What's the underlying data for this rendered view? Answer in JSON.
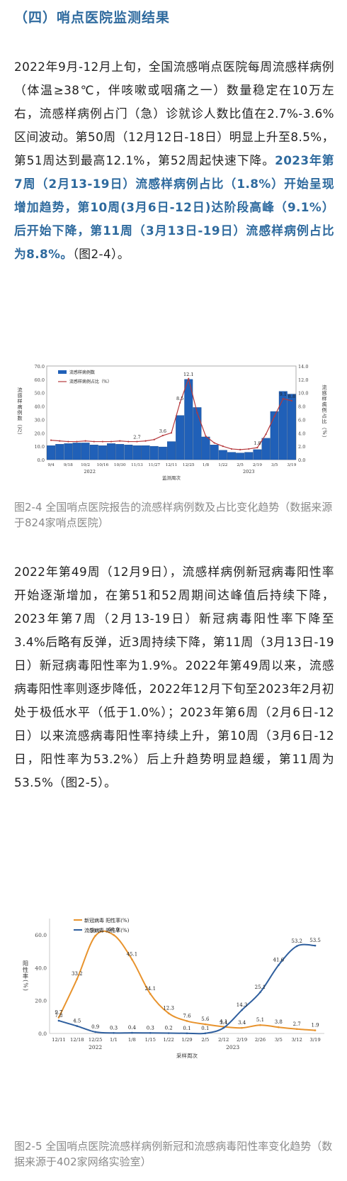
{
  "heading": "（四）哨点医院监测结果",
  "para1": {
    "plain": "2022年9月-12月上旬，全国流感哨点医院每周流感样病例（体温≥38℃，伴咳嗽或咽痛之一）数量稳定在10万左右，流感样病例占门（急）诊就诊人数比值在2.7%-3.6%区间波动。第50周（12月12日-18日）明显上升至8.5%，第51周达到最高12.1%，第52周起快速下降。",
    "bold": "2023年第7周（2月13-19日）流感样病例占比（1.8%）开始呈现增加趋势，第10周(3月6日-12日)达阶段高峰（9.1%）后开始下降，第11周（3月13日-19日）流感样病例占比为8.8%。",
    "tail": "（图2-4）。"
  },
  "chart1": {
    "legend_bar": "流感样病例数",
    "legend_line": "流感样病例占比（%）",
    "ylabel_left": "流感样病例数（万）",
    "ylabel_right": "流感样病例占比（%）",
    "xlabel": "监测周次",
    "year_left": "2022",
    "year_right": "2023",
    "caption": "图2-4 全国哨点医院报告的流感样病例数及占比变化趋势（数据来源于824家哨点医院）"
  },
  "para2": "2022年第49周（12月9日），流感样病例新冠病毒阳性率开始逐渐增加，在第51和52周期间达峰值后持续下降，2023年第7周（2月13-19日）新冠病毒阳性率下降至3.4%后略有反弹，近3周持续下降，第11周（3月13日-19日）新冠病毒阳性率为1.9%。2022年第49周以来，流感病毒阳性率则逐步降低，2022年12月下旬至2023年2月初处于极低水平（低于1.0%）；2023年第6周（2月6日-12日）以来流感病毒阳性率持续上升，第10周（3月6日-12日，阳性率为53.2%）后上升趋势明显趋缓，第11周为53.5%（图2-5）。",
  "chart2": {
    "legend_covid": "新冠病毒 阳性率(%)",
    "legend_flu": "流感病毒 阳性率(%)",
    "ylabel": "阳性率(%)",
    "xlabel": "采样周次",
    "year_left": "2022",
    "year_right": "2023",
    "caption": "图2-5 全国哨点医院流感样病例新冠和流感病毒阳性率变化趋势（数据来源于402家网络实验室）"
  },
  "colors": {
    "heading": "#2e6a9e",
    "bar": "#2060b8",
    "line1": "#b5383c",
    "covid": "#e8932d",
    "flu": "#2f5f9e"
  },
  "chart_data": [
    {
      "type": "bar",
      "categories": [
        "9/4",
        "",
        "9/18",
        "",
        "10/2",
        "",
        "10/16",
        "",
        "10/30",
        "",
        "11/13",
        "",
        "11/27",
        "",
        "12/11",
        "",
        "12/25",
        "",
        "1/8",
        "",
        "1/22",
        "",
        "2/5",
        "",
        "2/19",
        "",
        "3/5",
        "",
        "3/19"
      ],
      "series": [
        {
          "name": "流感样病例数",
          "values": [
            10.5,
            11.5,
            12.0,
            12.5,
            12.5,
            11.0,
            10.5,
            12.0,
            11.5,
            11.0,
            10.5,
            10.5,
            10.0,
            9.5,
            13.5,
            33.0,
            60.0,
            39.0,
            17.0,
            11.0,
            7.0,
            5.5,
            5.0,
            5.5,
            7.5,
            16.0,
            36.0,
            51.0,
            49.0
          ]
        },
        {
          "name": "流感样病例占比（%）",
          "values": [
            2.9,
            2.8,
            2.7,
            2.7,
            2.8,
            2.7,
            2.7,
            2.7,
            2.8,
            2.7,
            2.7,
            2.8,
            3.0,
            3.6,
            4.0,
            8.5,
            12.1,
            7.0,
            3.5,
            2.5,
            2.0,
            1.6,
            1.5,
            1.6,
            1.8,
            3.8,
            6.5,
            9.1,
            8.8
          ]
        }
      ],
      "data_labels": {
        "13": "3.6",
        "15": "8.5",
        "16": "12.1",
        "10": "2.7",
        "24": "1.8",
        "27": "9.1",
        "28": "8.8"
      },
      "ylim_left": [
        0,
        70
      ],
      "ylim_right": [
        0,
        14
      ],
      "yticks_left": [
        "0.0",
        "10.0",
        "20.0",
        "30.0",
        "40.0",
        "50.0",
        "60.0",
        "70.0"
      ],
      "yticks_right": [
        "0.0",
        "2.0",
        "4.0",
        "6.0",
        "8.0",
        "10.0",
        "12.0",
        "14.0"
      ]
    },
    {
      "type": "line",
      "categories": [
        "12/11",
        "12/18",
        "12/25",
        "1/1",
        "1/8",
        "1/15",
        "1/22",
        "1/29",
        "2/5",
        "2/12",
        "2/19",
        "2/26",
        "3/5",
        "3/12",
        "3/19"
      ],
      "series": [
        {
          "name": "新冠病毒 阳性率(%)",
          "values": [
            9.7,
            33.2,
            59.5,
            60.0,
            45.1,
            24.1,
            12.3,
            7.6,
            5.6,
            4.1,
            3.4,
            5.1,
            3.8,
            2.7,
            1.9
          ]
        },
        {
          "name": "流感病毒 阳性率(%)",
          "values": [
            7.8,
            4.5,
            0.9,
            0.3,
            0.4,
            0.3,
            0.2,
            0.1,
            0.1,
            3.4,
            14.3,
            25.1,
            41.6,
            53.2,
            53.5
          ]
        }
      ],
      "ylim": [
        0,
        70
      ],
      "yticks": [
        "0.0",
        "20.0",
        "40.0",
        "60.0"
      ]
    }
  ]
}
